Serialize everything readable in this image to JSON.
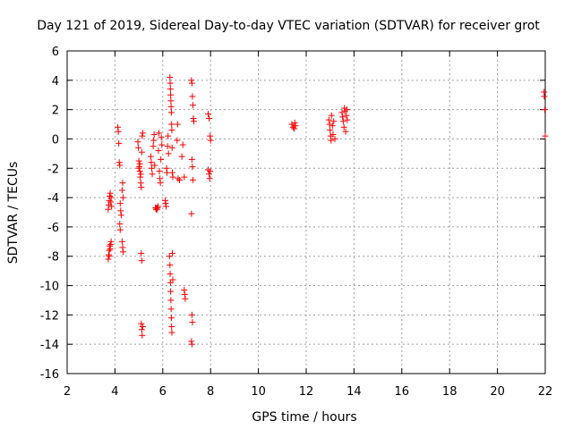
{
  "chart_data": {
    "type": "scatter",
    "title": "Day 121 of 2019, Sidereal Day-to-day VTEC variation (SDTVAR) for receiver grot",
    "xlabel": "GPS time / hours",
    "ylabel": "SDTVAR / TECUs",
    "xlim": [
      2,
      22
    ],
    "ylim": [
      -16,
      6
    ],
    "xticks": [
      "2",
      "4",
      "6",
      "8",
      "10",
      "12",
      "14",
      "16",
      "18",
      "20",
      "22"
    ],
    "yticks": [
      "-16",
      "-14",
      "-12",
      "-10",
      "-8",
      "-6",
      "-4",
      "-2",
      "0",
      "2",
      "4",
      "6"
    ],
    "grid": true,
    "marker": "+",
    "color": "#ff0000",
    "series": [
      {
        "name": "SDTVAR",
        "points": [
          [
            3.72,
            -4.8
          ],
          [
            3.74,
            -4.5
          ],
          [
            3.76,
            -4.2
          ],
          [
            3.78,
            -3.9
          ],
          [
            3.8,
            -3.7
          ],
          [
            3.82,
            -4.3
          ],
          [
            3.84,
            -4.0
          ],
          [
            3.86,
            -4.6
          ],
          [
            3.72,
            -8.2
          ],
          [
            3.74,
            -7.9
          ],
          [
            3.76,
            -7.6
          ],
          [
            3.78,
            -7.3
          ],
          [
            3.8,
            -7.5
          ],
          [
            3.82,
            -7.2
          ],
          [
            3.84,
            -7.0
          ],
          [
            3.76,
            -8.0
          ],
          [
            4.12,
            0.8
          ],
          [
            4.14,
            0.5
          ],
          [
            4.16,
            -0.3
          ],
          [
            4.18,
            -1.6
          ],
          [
            4.2,
            -1.8
          ],
          [
            4.22,
            -4.4
          ],
          [
            4.24,
            -4.9
          ],
          [
            4.26,
            -5.2
          ],
          [
            4.2,
            -5.8
          ],
          [
            4.22,
            -6.2
          ],
          [
            4.3,
            -3.5
          ],
          [
            4.32,
            -3.0
          ],
          [
            4.34,
            -4.0
          ],
          [
            4.3,
            -7.0
          ],
          [
            4.32,
            -7.4
          ],
          [
            4.34,
            -7.7
          ],
          [
            4.96,
            -0.2
          ],
          [
            4.98,
            -0.6
          ],
          [
            5.0,
            -1.5
          ],
          [
            5.02,
            -1.9
          ],
          [
            5.04,
            -2.2
          ],
          [
            5.06,
            -2.6
          ],
          [
            5.08,
            -3.0
          ],
          [
            5.1,
            -3.3
          ],
          [
            5.0,
            -2.0
          ],
          [
            5.04,
            -1.7
          ],
          [
            5.08,
            -2.4
          ],
          [
            5.12,
            -0.9
          ],
          [
            5.14,
            0.2
          ],
          [
            5.16,
            0.4
          ],
          [
            5.1,
            -7.8
          ],
          [
            5.12,
            -8.3
          ],
          [
            5.1,
            -12.6
          ],
          [
            5.12,
            -13.0
          ],
          [
            5.14,
            -13.4
          ],
          [
            5.16,
            -12.8
          ],
          [
            5.5,
            -1.2
          ],
          [
            5.52,
            -1.6
          ],
          [
            5.54,
            -2.0
          ],
          [
            5.56,
            -2.4
          ],
          [
            5.6,
            -0.5
          ],
          [
            5.62,
            -0.1
          ],
          [
            5.64,
            0.3
          ],
          [
            5.66,
            -1.8
          ],
          [
            5.7,
            -4.7
          ],
          [
            5.72,
            -4.8
          ],
          [
            5.74,
            -4.7
          ],
          [
            5.76,
            -4.8
          ],
          [
            5.78,
            -4.7
          ],
          [
            5.8,
            -4.6
          ],
          [
            5.82,
            -0.8
          ],
          [
            5.84,
            0.4
          ],
          [
            5.86,
            -2.2
          ],
          [
            5.88,
            -2.7
          ],
          [
            5.9,
            -3.0
          ],
          [
            5.92,
            -1.4
          ],
          [
            5.94,
            0.1
          ],
          [
            5.96,
            -0.4
          ],
          [
            6.1,
            -4.2
          ],
          [
            6.12,
            -4.4
          ],
          [
            6.14,
            -4.6
          ],
          [
            6.16,
            -2.0
          ],
          [
            6.18,
            -2.3
          ],
          [
            6.2,
            -0.5
          ],
          [
            6.22,
            0.2
          ],
          [
            6.24,
            -1.0
          ],
          [
            6.3,
            4.2
          ],
          [
            6.31,
            3.8
          ],
          [
            6.32,
            3.4
          ],
          [
            6.33,
            3.0
          ],
          [
            6.34,
            2.6
          ],
          [
            6.35,
            2.2
          ],
          [
            6.36,
            1.8
          ],
          [
            6.37,
            1.0
          ],
          [
            6.38,
            0.6
          ],
          [
            6.39,
            -0.6
          ],
          [
            6.4,
            -2.3
          ],
          [
            6.42,
            -2.6
          ],
          [
            6.28,
            -8.0
          ],
          [
            6.3,
            -8.6
          ],
          [
            6.31,
            -9.2
          ],
          [
            6.32,
            -9.8
          ],
          [
            6.33,
            -10.4
          ],
          [
            6.34,
            -11.0
          ],
          [
            6.35,
            -11.6
          ],
          [
            6.36,
            -12.2
          ],
          [
            6.37,
            -12.8
          ],
          [
            6.38,
            -13.2
          ],
          [
            6.4,
            -7.8
          ],
          [
            6.42,
            -9.6
          ],
          [
            6.6,
            -0.1
          ],
          [
            6.62,
            1.0
          ],
          [
            6.64,
            -2.7
          ],
          [
            6.7,
            -2.8
          ],
          [
            6.8,
            -1.2
          ],
          [
            6.84,
            -0.4
          ],
          [
            6.9,
            -2.6
          ],
          [
            6.9,
            -10.3
          ],
          [
            6.92,
            -10.6
          ],
          [
            6.94,
            -10.9
          ],
          [
            7.2,
            4.0
          ],
          [
            7.22,
            3.8
          ],
          [
            7.24,
            2.9
          ],
          [
            7.26,
            2.3
          ],
          [
            7.28,
            1.4
          ],
          [
            7.3,
            1.2
          ],
          [
            7.22,
            -1.4
          ],
          [
            7.24,
            -1.9
          ],
          [
            7.26,
            -2.8
          ],
          [
            7.2,
            -5.1
          ],
          [
            7.22,
            -12.0
          ],
          [
            7.24,
            -12.5
          ],
          [
            7.2,
            -13.8
          ],
          [
            7.22,
            -14.0
          ],
          [
            7.9,
            1.7
          ],
          [
            7.94,
            1.4
          ],
          [
            7.98,
            0.2
          ],
          [
            8.0,
            -0.1
          ],
          [
            7.9,
            -2.1
          ],
          [
            7.94,
            -2.4
          ],
          [
            7.96,
            -2.7
          ],
          [
            7.98,
            -2.2
          ],
          [
            11.4,
            1.0
          ],
          [
            11.45,
            0.8
          ],
          [
            11.5,
            0.7
          ],
          [
            11.52,
            1.1
          ],
          [
            11.55,
            0.9
          ],
          [
            12.95,
            1.3
          ],
          [
            12.98,
            1.0
          ],
          [
            13.0,
            0.6
          ],
          [
            13.02,
            0.2
          ],
          [
            13.04,
            -0.1
          ],
          [
            13.06,
            1.6
          ],
          [
            13.1,
            0.9
          ],
          [
            13.12,
            0.3
          ],
          [
            13.15,
            1.2
          ],
          [
            13.2,
            0.0
          ],
          [
            13.5,
            1.8
          ],
          [
            13.52,
            1.5
          ],
          [
            13.55,
            1.2
          ],
          [
            13.58,
            0.8
          ],
          [
            13.6,
            2.1
          ],
          [
            13.62,
            1.9
          ],
          [
            13.65,
            0.5
          ],
          [
            13.68,
            1.6
          ],
          [
            13.7,
            2.0
          ],
          [
            13.72,
            1.3
          ],
          [
            21.95,
            3.2
          ],
          [
            21.96,
            2.9
          ],
          [
            21.98,
            2.0
          ],
          [
            22.0,
            0.2
          ]
        ]
      }
    ]
  }
}
